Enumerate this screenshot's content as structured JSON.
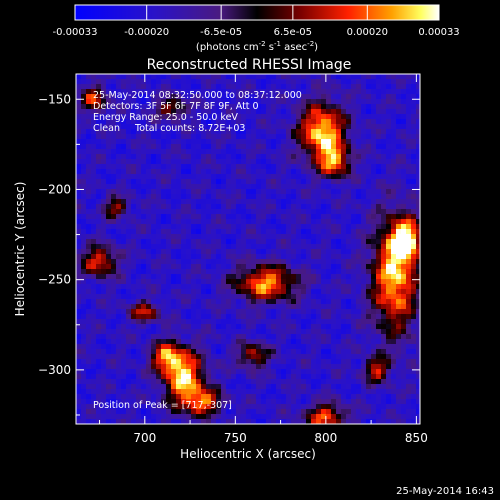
{
  "chart_data": {
    "type": "heatmap",
    "title": "Reconstructed RHESSI Image",
    "xlabel": "Heliocentric X (arcsec)",
    "ylabel": "Heliocentric Y (arcsec)",
    "xlim": [
      662,
      852
    ],
    "ylim": [
      -330,
      -136
    ],
    "x_ticks": [
      700,
      750,
      800,
      850
    ],
    "y_ticks": [
      -150,
      -200,
      -250,
      -300
    ],
    "colorbar": {
      "ticks": [
        "-0.00033",
        "-0.00020",
        "-6.5e-05",
        "6.5e-05",
        "0.00020",
        "0.00033"
      ],
      "tick_values": [
        -0.00033,
        -0.0002,
        -6.5e-05,
        6.5e-05,
        0.0002,
        0.00033
      ],
      "range": [
        -0.00033,
        0.00033
      ],
      "units_prefix": "(photons cm",
      "units_exp1": "-2",
      "units_mid": " s",
      "units_exp2": "-1",
      "units_mid2": " asec",
      "units_exp3": "-2",
      "units_suffix": ")"
    },
    "annotations": [
      "25-May-2014 08:32:50.000 to 08:37:12.000",
      "Detectors: 3F 5F 6F 7F 8F 9F, Att 0",
      "Energy Range: 25.0 - 50.0 keV",
      "Clean     Total counts: 8.72E+03"
    ],
    "peak_label": "Position of Peak = [717,-307]",
    "peak": [
      717,
      -307
    ],
    "sources": [
      {
        "x": 722,
        "y": -305,
        "rx": 8,
        "ry": 11,
        "amp": 0.00028
      },
      {
        "x": 712,
        "y": -293,
        "rx": 6,
        "ry": 6,
        "amp": 0.00019
      },
      {
        "x": 733,
        "y": -318,
        "rx": 7,
        "ry": 5,
        "amp": 0.00015
      },
      {
        "x": 838,
        "y": -248,
        "rx": 9,
        "ry": 22,
        "amp": 0.00028
      },
      {
        "x": 845,
        "y": -228,
        "rx": 6,
        "ry": 8,
        "amp": 0.00022
      },
      {
        "x": 798,
        "y": -168,
        "rx": 9,
        "ry": 11,
        "amp": 0.00031
      },
      {
        "x": 805,
        "y": -185,
        "rx": 6,
        "ry": 6,
        "amp": 0.00018
      },
      {
        "x": 767,
        "y": -252,
        "rx": 12,
        "ry": 7,
        "amp": 0.00024
      },
      {
        "x": 675,
        "y": -240,
        "rx": 7,
        "ry": 6,
        "amp": 0.00017
      },
      {
        "x": 672,
        "y": -150,
        "rx": 5,
        "ry": 5,
        "amp": 0.00015
      },
      {
        "x": 715,
        "y": -155,
        "rx": 6,
        "ry": 4,
        "amp": 0.00011
      },
      {
        "x": 700,
        "y": -268,
        "rx": 6,
        "ry": 4,
        "amp": 0.00012
      },
      {
        "x": 760,
        "y": -292,
        "rx": 6,
        "ry": 5,
        "amp": 0.00012
      },
      {
        "x": 800,
        "y": -326,
        "rx": 8,
        "ry": 5,
        "amp": 0.00019
      },
      {
        "x": 828,
        "y": -300,
        "rx": 5,
        "ry": 5,
        "amp": 0.00013
      },
      {
        "x": 684,
        "y": -210,
        "rx": 5,
        "ry": 4,
        "amp": 0.0001
      }
    ],
    "grid": false,
    "colormap": "blue-purple-red-yellow-white"
  },
  "footer_timestamp": "25-May-2014 16:43"
}
